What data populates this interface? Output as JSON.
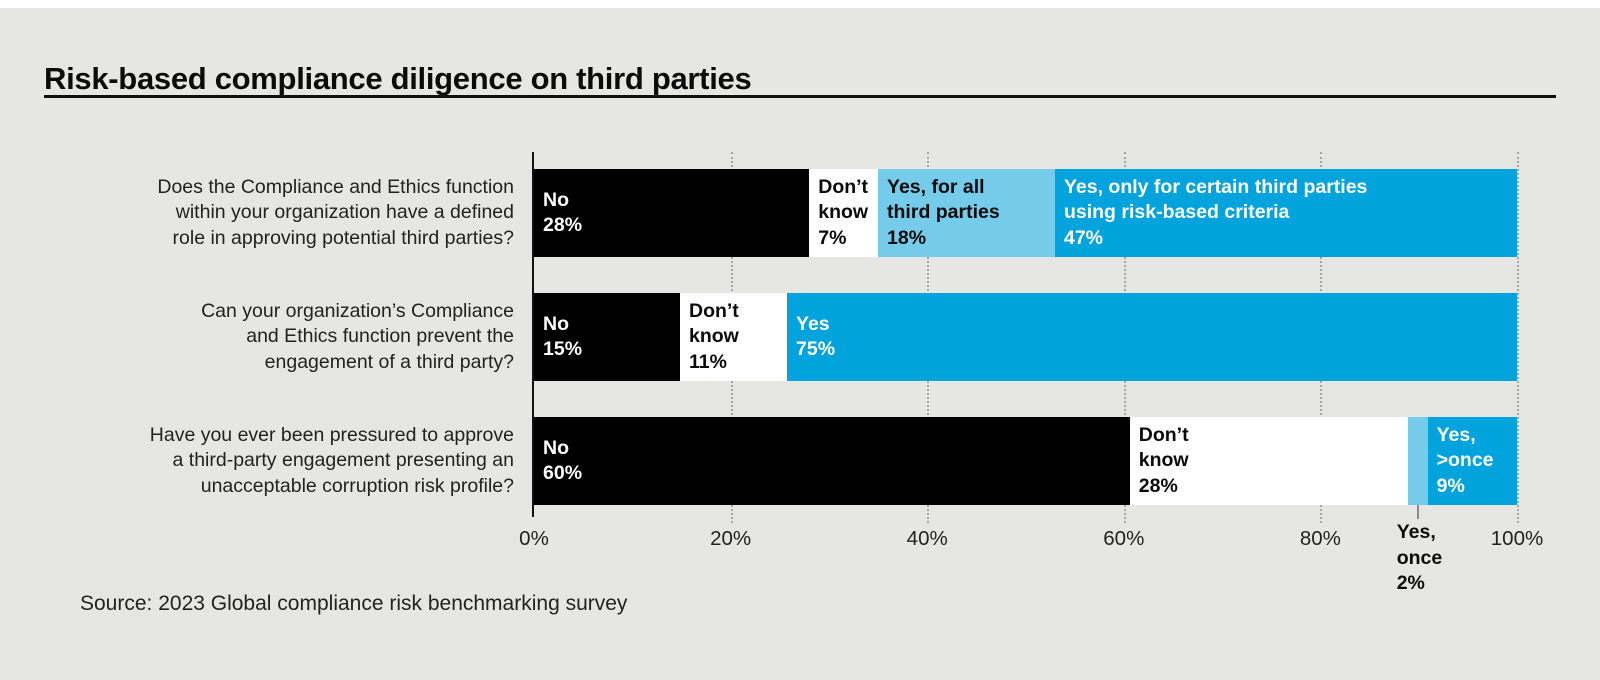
{
  "page": {
    "title": "Risk-based compliance diligence on third parties",
    "source": "Source: 2023 Global compliance risk benchmarking survey"
  },
  "chart_data": {
    "type": "bar",
    "variant": "horizontal-stacked",
    "title": "Risk-based compliance diligence on third parties",
    "xlabel": "",
    "ylabel": "",
    "xlim": [
      0,
      100
    ],
    "x_ticks": [
      "0%",
      "20%",
      "40%",
      "60%",
      "80%",
      "100%"
    ],
    "grid": "vertical-dotted",
    "legend": "inline-segment-labels",
    "colors": {
      "black": "#000000",
      "white": "#ffffff",
      "light_blue": "#74cbea",
      "blue": "#00a3dc"
    },
    "rows": [
      {
        "question_lines": [
          "Does the Compliance and Ethics function",
          "within your organization have a defined",
          "role in approving potential third parties?"
        ],
        "segments": [
          {
            "label_lines": [
              "No",
              "28%"
            ],
            "value": 28,
            "color": "black",
            "text": "white"
          },
          {
            "label_lines": [
              "Don’t",
              "know",
              "7%"
            ],
            "value": 7,
            "color": "white",
            "text": "black"
          },
          {
            "label_lines": [
              "Yes, for all",
              "third parties",
              "18%"
            ],
            "value": 18,
            "color": "light_blue",
            "text": "black"
          },
          {
            "label_lines": [
              "Yes, only for certain third parties",
              "using risk-based criteria",
              "47%"
            ],
            "value": 47,
            "color": "blue",
            "text": "white"
          }
        ]
      },
      {
        "question_lines": [
          "Can your organization’s Compliance",
          "and Ethics function prevent the",
          "engagement of a third party?"
        ],
        "segments": [
          {
            "label_lines": [
              "No",
              "15%"
            ],
            "value": 15,
            "color": "black",
            "text": "white"
          },
          {
            "label_lines": [
              "Don’t",
              "know",
              "11%"
            ],
            "value": 11,
            "color": "white",
            "text": "black"
          },
          {
            "label_lines": [
              "Yes",
              "75%"
            ],
            "value": 75,
            "color": "blue",
            "text": "white"
          }
        ]
      },
      {
        "question_lines": [
          "Have you ever been pressured to approve",
          "a third-party engagement presenting an",
          "unacceptable corruption risk profile?"
        ],
        "segments": [
          {
            "label_lines": [
              "No",
              "60%"
            ],
            "value": 60,
            "color": "black",
            "text": "white"
          },
          {
            "label_lines": [
              "Don’t",
              "know",
              "28%"
            ],
            "value": 28,
            "color": "white",
            "text": "black"
          },
          {
            "label_lines": [],
            "value": 2,
            "color": "light_blue",
            "text": "black",
            "callout_lines": [
              "Yes,",
              "once",
              "2%"
            ]
          },
          {
            "label_lines": [
              "Yes,",
              ">once",
              "9%"
            ],
            "value": 9,
            "color": "blue",
            "text": "white"
          }
        ]
      }
    ]
  }
}
